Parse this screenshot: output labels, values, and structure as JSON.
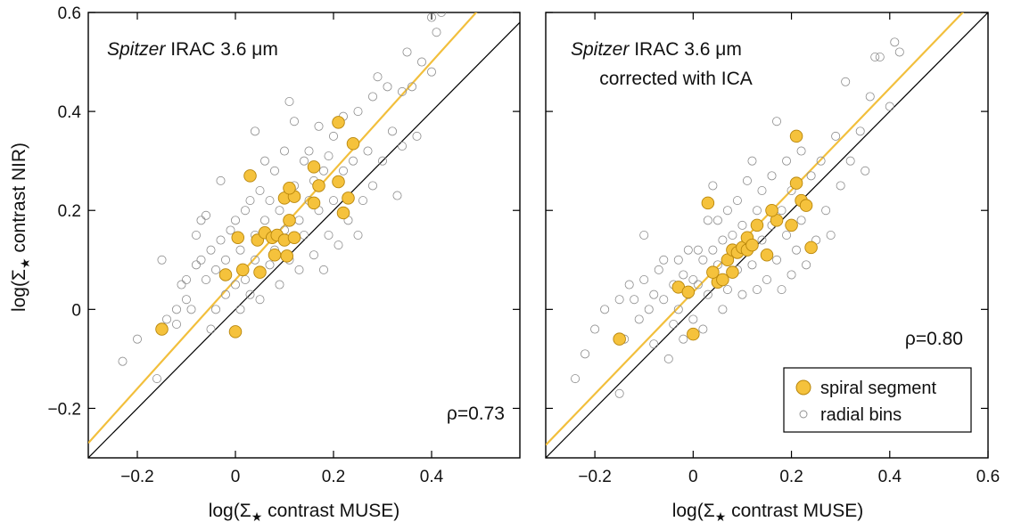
{
  "colors": {
    "fit_line": "#F2BF3C",
    "spiral_fill": "#F5C23C",
    "spiral_edge": "#B8860B",
    "radial_edge": "#8C8C8C",
    "one_to_one": "#000000"
  },
  "shared_ylabel_parts": [
    "log(Σ",
    "★",
    " contrast NIR)"
  ],
  "chart_data": [
    {
      "type": "scatter",
      "title_italic": "Spitzer",
      "title_rest": " IRAC 3.6 μm",
      "subtitle": "",
      "xlabel_parts": [
        "log(Σ",
        "★",
        " contrast MUSE)"
      ],
      "xlim": [
        -0.3,
        0.58
      ],
      "ylim": [
        -0.3,
        0.6
      ],
      "xticks": [
        -0.2,
        0,
        0.2,
        0.4
      ],
      "xtick_labels": [
        "−0.2",
        "0",
        "0.2",
        "0.4"
      ],
      "yticks": [
        -0.2,
        0,
        0.2,
        0.4,
        0.6
      ],
      "ytick_labels": [
        "−0.2",
        "0",
        "0.2",
        "0.4",
        "0.6"
      ],
      "rho_label": "ρ=0.73",
      "fit_line": {
        "slope": 1.1,
        "intercept": 0.06
      },
      "one_to_one": true,
      "series": [
        {
          "name": "spiral segment",
          "points": [
            [
              -0.15,
              -0.04
            ],
            [
              0,
              -0.045
            ],
            [
              -0.02,
              0.07
            ],
            [
              0.015,
              0.08
            ],
            [
              0.05,
              0.075
            ],
            [
              0.005,
              0.145
            ],
            [
              0.045,
              0.14
            ],
            [
              0.06,
              0.155
            ],
            [
              0.075,
              0.145
            ],
            [
              0.085,
              0.15
            ],
            [
              0.08,
              0.11
            ],
            [
              0.1,
              0.14
            ],
            [
              0.105,
              0.108
            ],
            [
              0.12,
              0.145
            ],
            [
              0.11,
              0.18
            ],
            [
              0.1,
              0.225
            ],
            [
              0.12,
              0.228
            ],
            [
              0.11,
              0.245
            ],
            [
              0.16,
              0.215
            ],
            [
              0.17,
              0.25
            ],
            [
              0.03,
              0.27
            ],
            [
              0.16,
              0.288
            ],
            [
              0.21,
              0.258
            ],
            [
              0.22,
              0.195
            ],
            [
              0.23,
              0.225
            ],
            [
              0.24,
              0.335
            ],
            [
              0.21,
              0.378
            ]
          ]
        },
        {
          "name": "radial bins",
          "points": [
            [
              -0.23,
              -0.105
            ],
            [
              -0.2,
              -0.06
            ],
            [
              -0.15,
              0.1
            ],
            [
              -0.16,
              -0.14
            ],
            [
              -0.14,
              -0.02
            ],
            [
              -0.12,
              -0.03
            ],
            [
              -0.12,
              0.0
            ],
            [
              -0.11,
              0.05
            ],
            [
              -0.1,
              0.06
            ],
            [
              -0.1,
              0.02
            ],
            [
              -0.09,
              0.0
            ],
            [
              -0.08,
              0.15
            ],
            [
              -0.08,
              0.09
            ],
            [
              -0.07,
              0.1
            ],
            [
              -0.07,
              0.18
            ],
            [
              -0.06,
              0.06
            ],
            [
              -0.06,
              0.19
            ],
            [
              -0.05,
              0.12
            ],
            [
              -0.05,
              -0.04
            ],
            [
              -0.04,
              0.0
            ],
            [
              -0.04,
              0.08
            ],
            [
              -0.03,
              0.14
            ],
            [
              -0.03,
              0.26
            ],
            [
              -0.02,
              0.03
            ],
            [
              -0.02,
              0.1
            ],
            [
              -0.01,
              0.16
            ],
            [
              0.0,
              0.18
            ],
            [
              0.0,
              0.05
            ],
            [
              0.01,
              0.0
            ],
            [
              0.01,
              0.12
            ],
            [
              0.02,
              0.2
            ],
            [
              0.02,
              0.06
            ],
            [
              0.03,
              0.03
            ],
            [
              0.03,
              0.22
            ],
            [
              0.04,
              0.1
            ],
            [
              0.04,
              0.15
            ],
            [
              0.04,
              0.36
            ],
            [
              0.05,
              0.24
            ],
            [
              0.05,
              0.02
            ],
            [
              0.06,
              0.18
            ],
            [
              0.06,
              0.3
            ],
            [
              0.07,
              0.09
            ],
            [
              0.07,
              0.22
            ],
            [
              0.08,
              0.12
            ],
            [
              0.08,
              0.28
            ],
            [
              0.09,
              0.2
            ],
            [
              0.09,
              0.05
            ],
            [
              0.1,
              0.16
            ],
            [
              0.1,
              0.32
            ],
            [
              0.11,
              0.1
            ],
            [
              0.11,
              0.42
            ],
            [
              0.12,
              0.25
            ],
            [
              0.12,
              0.38
            ],
            [
              0.13,
              0.18
            ],
            [
              0.13,
              0.08
            ],
            [
              0.14,
              0.3
            ],
            [
              0.14,
              0.15
            ],
            [
              0.15,
              0.22
            ],
            [
              0.15,
              0.32
            ],
            [
              0.16,
              0.11
            ],
            [
              0.16,
              0.26
            ],
            [
              0.17,
              0.2
            ],
            [
              0.17,
              0.37
            ],
            [
              0.18,
              0.28
            ],
            [
              0.18,
              0.08
            ],
            [
              0.19,
              0.31
            ],
            [
              0.19,
              0.15
            ],
            [
              0.2,
              0.22
            ],
            [
              0.2,
              0.35
            ],
            [
              0.21,
              0.13
            ],
            [
              0.22,
              0.28
            ],
            [
              0.22,
              0.39
            ],
            [
              0.23,
              0.18
            ],
            [
              0.24,
              0.3
            ],
            [
              0.25,
              0.15
            ],
            [
              0.25,
              0.4
            ],
            [
              0.26,
              0.22
            ],
            [
              0.27,
              0.32
            ],
            [
              0.28,
              0.25
            ],
            [
              0.28,
              0.43
            ],
            [
              0.29,
              0.47
            ],
            [
              0.3,
              0.3
            ],
            [
              0.31,
              0.45
            ],
            [
              0.32,
              0.36
            ],
            [
              0.33,
              0.23
            ],
            [
              0.34,
              0.33
            ],
            [
              0.34,
              0.44
            ],
            [
              0.35,
              0.52
            ],
            [
              0.36,
              0.45
            ],
            [
              0.37,
              0.35
            ],
            [
              0.38,
              0.5
            ],
            [
              0.4,
              0.48
            ],
            [
              0.4,
              0.59
            ],
            [
              0.41,
              0.56
            ],
            [
              0.42,
              0.6
            ]
          ]
        }
      ]
    },
    {
      "type": "scatter",
      "title_italic": "Spitzer",
      "title_rest": " IRAC 3.6 μm",
      "subtitle": "corrected with ICA",
      "xlabel_parts": [
        "log(Σ",
        "★",
        " contrast MUSE)"
      ],
      "xlim": [
        -0.3,
        0.6
      ],
      "ylim": [
        -0.3,
        0.6
      ],
      "xticks": [
        -0.2,
        0,
        0.2,
        0.4,
        0.6
      ],
      "xtick_labels": [
        "−0.2",
        "0",
        "0.2",
        "0.4",
        "0.6"
      ],
      "yticks": [
        -0.2,
        0,
        0.2,
        0.4,
        0.6
      ],
      "ytick_labels": [],
      "rho_label": "ρ=0.80",
      "fit_line": {
        "slope": 1.03,
        "intercept": 0.035
      },
      "one_to_one": true,
      "legend": [
        {
          "label": "spiral segment",
          "marker": "filled"
        },
        {
          "label": "radial bins",
          "marker": "open"
        }
      ],
      "series": [
        {
          "name": "spiral segment",
          "points": [
            [
              -0.15,
              -0.06
            ],
            [
              0,
              -0.05
            ],
            [
              -0.03,
              0.045
            ],
            [
              -0.01,
              0.035
            ],
            [
              0.05,
              0.055
            ],
            [
              0.04,
              0.075
            ],
            [
              0.06,
              0.06
            ],
            [
              0.07,
              0.1
            ],
            [
              0.08,
              0.075
            ],
            [
              0.08,
              0.12
            ],
            [
              0.09,
              0.115
            ],
            [
              0.1,
              0.125
            ],
            [
              0.11,
              0.12
            ],
            [
              0.11,
              0.145
            ],
            [
              0.12,
              0.13
            ],
            [
              0.13,
              0.17
            ],
            [
              0.15,
              0.11
            ],
            [
              0.17,
              0.18
            ],
            [
              0.16,
              0.2
            ],
            [
              0.2,
              0.17
            ],
            [
              0.21,
              0.255
            ],
            [
              0.22,
              0.22
            ],
            [
              0.23,
              0.21
            ],
            [
              0.24,
              0.125
            ],
            [
              0.21,
              0.35
            ],
            [
              0.03,
              0.215
            ]
          ]
        },
        {
          "name": "radial bins",
          "points": [
            [
              -0.24,
              -0.14
            ],
            [
              -0.22,
              -0.09
            ],
            [
              -0.2,
              -0.04
            ],
            [
              -0.18,
              0.0
            ],
            [
              -0.15,
              -0.17
            ],
            [
              -0.15,
              0.02
            ],
            [
              -0.14,
              -0.06
            ],
            [
              -0.13,
              0.05
            ],
            [
              -0.12,
              0.02
            ],
            [
              -0.11,
              -0.02
            ],
            [
              -0.1,
              0.06
            ],
            [
              -0.1,
              0.15
            ],
            [
              -0.09,
              0.0
            ],
            [
              -0.08,
              0.03
            ],
            [
              -0.08,
              -0.07
            ],
            [
              -0.07,
              0.08
            ],
            [
              -0.06,
              0.02
            ],
            [
              -0.06,
              0.1
            ],
            [
              -0.05,
              -0.1
            ],
            [
              -0.04,
              0.05
            ],
            [
              -0.04,
              -0.03
            ],
            [
              -0.03,
              0.0
            ],
            [
              -0.03,
              0.1
            ],
            [
              -0.02,
              -0.06
            ],
            [
              -0.02,
              0.07
            ],
            [
              -0.01,
              0.12
            ],
            [
              -0.01,
              0.03
            ],
            [
              0.0,
              0.06
            ],
            [
              0.0,
              -0.02
            ],
            [
              0.01,
              0.12
            ],
            [
              0.01,
              0.05
            ],
            [
              0.02,
              0.1
            ],
            [
              0.02,
              -0.04
            ],
            [
              0.03,
              0.18
            ],
            [
              0.03,
              0.03
            ],
            [
              0.04,
              0.12
            ],
            [
              0.04,
              0.25
            ],
            [
              0.05,
              0.09
            ],
            [
              0.05,
              0.18
            ],
            [
              0.06,
              0.0
            ],
            [
              0.06,
              0.14
            ],
            [
              0.07,
              0.2
            ],
            [
              0.07,
              0.04
            ],
            [
              0.08,
              0.15
            ],
            [
              0.09,
              0.08
            ],
            [
              0.09,
              0.22
            ],
            [
              0.1,
              0.03
            ],
            [
              0.1,
              0.17
            ],
            [
              0.11,
              0.26
            ],
            [
              0.12,
              0.09
            ],
            [
              0.12,
              0.3
            ],
            [
              0.13,
              0.2
            ],
            [
              0.13,
              0.04
            ],
            [
              0.14,
              0.14
            ],
            [
              0.14,
              0.24
            ],
            [
              0.15,
              0.06
            ],
            [
              0.16,
              0.17
            ],
            [
              0.16,
              0.27
            ],
            [
              0.17,
              0.1
            ],
            [
              0.17,
              0.38
            ],
            [
              0.18,
              0.2
            ],
            [
              0.18,
              0.04
            ],
            [
              0.19,
              0.15
            ],
            [
              0.19,
              0.3
            ],
            [
              0.2,
              0.07
            ],
            [
              0.2,
              0.24
            ],
            [
              0.21,
              0.12
            ],
            [
              0.22,
              0.32
            ],
            [
              0.22,
              0.18
            ],
            [
              0.23,
              0.09
            ],
            [
              0.24,
              0.27
            ],
            [
              0.25,
              0.14
            ],
            [
              0.26,
              0.3
            ],
            [
              0.27,
              0.2
            ],
            [
              0.28,
              0.15
            ],
            [
              0.29,
              0.35
            ],
            [
              0.3,
              0.25
            ],
            [
              0.31,
              0.46
            ],
            [
              0.32,
              0.3
            ],
            [
              0.34,
              0.36
            ],
            [
              0.35,
              0.28
            ],
            [
              0.36,
              0.43
            ],
            [
              0.37,
              0.51
            ],
            [
              0.38,
              0.51
            ],
            [
              0.4,
              0.41
            ],
            [
              0.41,
              0.54
            ],
            [
              0.42,
              0.52
            ]
          ]
        }
      ]
    }
  ]
}
